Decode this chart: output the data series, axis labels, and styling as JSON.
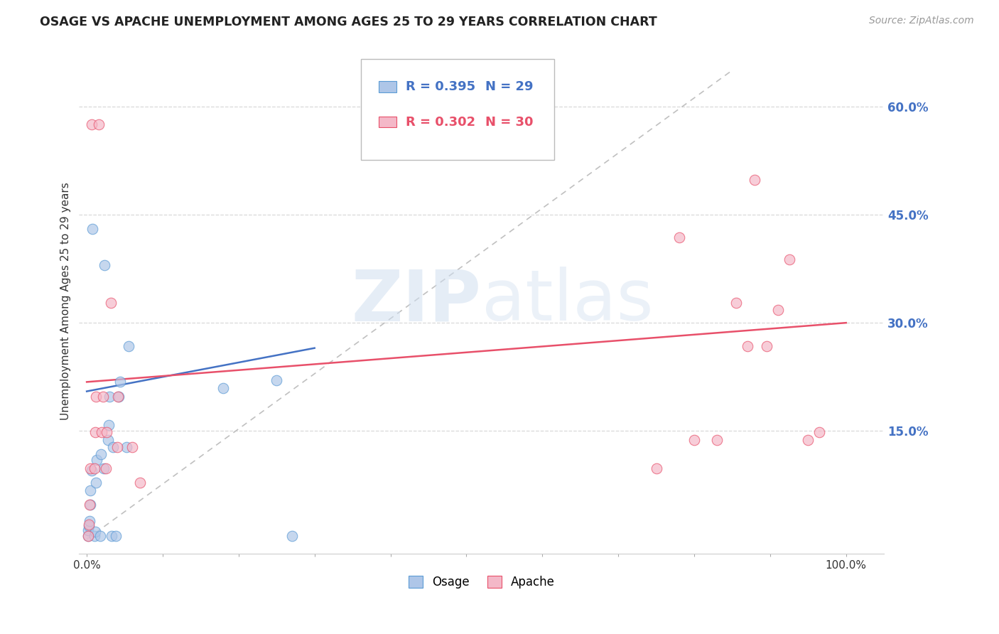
{
  "title": "OSAGE VS APACHE UNEMPLOYMENT AMONG AGES 25 TO 29 YEARS CORRELATION CHART",
  "source": "Source: ZipAtlas.com",
  "ylabel": "Unemployment Among Ages 25 to 29 years",
  "xlim": [
    -0.01,
    1.05
  ],
  "ylim": [
    -0.02,
    0.68
  ],
  "xticks": [
    0.0,
    0.1,
    0.2,
    0.3,
    0.4,
    0.5,
    0.6,
    0.7,
    0.8,
    0.9,
    1.0
  ],
  "xticklabels": [
    "0.0%",
    "",
    "",
    "",
    "",
    "",
    "",
    "",
    "",
    "",
    "100.0%"
  ],
  "ytick_positions": [
    0.15,
    0.3,
    0.45,
    0.6
  ],
  "yticklabels": [
    "15.0%",
    "30.0%",
    "45.0%",
    "60.0%"
  ],
  "ytick_color": "#4472c4",
  "osage_color": "#aec6e8",
  "apache_color": "#f4b8c8",
  "osage_edge_color": "#5b9bd5",
  "apache_edge_color": "#e8506a",
  "trend_osage_color": "#4472c4",
  "trend_apache_color": "#e8506a",
  "diagonal_color": "#c0c0c0",
  "background_color": "#ffffff",
  "grid_color": "#d8d8d8",
  "legend_R_osage": "R = 0.395",
  "legend_N_osage": "N = 29",
  "legend_R_apache": "R = 0.302",
  "legend_N_apache": "N = 30",
  "legend_label_osage": "Osage",
  "legend_label_apache": "Apache",
  "osage_x": [
    0.002,
    0.002,
    0.003,
    0.004,
    0.005,
    0.005,
    0.006,
    0.007,
    0.01,
    0.011,
    0.012,
    0.013,
    0.018,
    0.019,
    0.022,
    0.023,
    0.028,
    0.029,
    0.03,
    0.033,
    0.035,
    0.038,
    0.042,
    0.044,
    0.052,
    0.055,
    0.18,
    0.25,
    0.27
  ],
  "osage_y": [
    0.005,
    0.012,
    0.018,
    0.025,
    0.048,
    0.068,
    0.095,
    0.43,
    0.005,
    0.01,
    0.078,
    0.11,
    0.005,
    0.118,
    0.098,
    0.38,
    0.138,
    0.158,
    0.198,
    0.005,
    0.128,
    0.005,
    0.198,
    0.218,
    0.128,
    0.268,
    0.21,
    0.22,
    0.005
  ],
  "apache_x": [
    0.002,
    0.003,
    0.004,
    0.005,
    0.006,
    0.01,
    0.011,
    0.012,
    0.016,
    0.02,
    0.021,
    0.025,
    0.026,
    0.032,
    0.04,
    0.041,
    0.06,
    0.07,
    0.75,
    0.78,
    0.8,
    0.83,
    0.855,
    0.87,
    0.88,
    0.895,
    0.91,
    0.925,
    0.95,
    0.965
  ],
  "apache_y": [
    0.005,
    0.02,
    0.048,
    0.098,
    0.575,
    0.098,
    0.148,
    0.198,
    0.575,
    0.148,
    0.198,
    0.098,
    0.148,
    0.328,
    0.128,
    0.198,
    0.128,
    0.078,
    0.098,
    0.418,
    0.138,
    0.138,
    0.328,
    0.268,
    0.498,
    0.268,
    0.318,
    0.388,
    0.138,
    0.148
  ],
  "marker_size": 110,
  "linewidth": 1.8,
  "alpha_fill": 0.7,
  "osage_trend_x": [
    0.0,
    0.3
  ],
  "apache_trend_x": [
    0.0,
    1.0
  ],
  "osage_trend_y_start": 0.205,
  "osage_trend_y_end": 0.265,
  "apache_trend_y_start": 0.218,
  "apache_trend_y_end": 0.3
}
